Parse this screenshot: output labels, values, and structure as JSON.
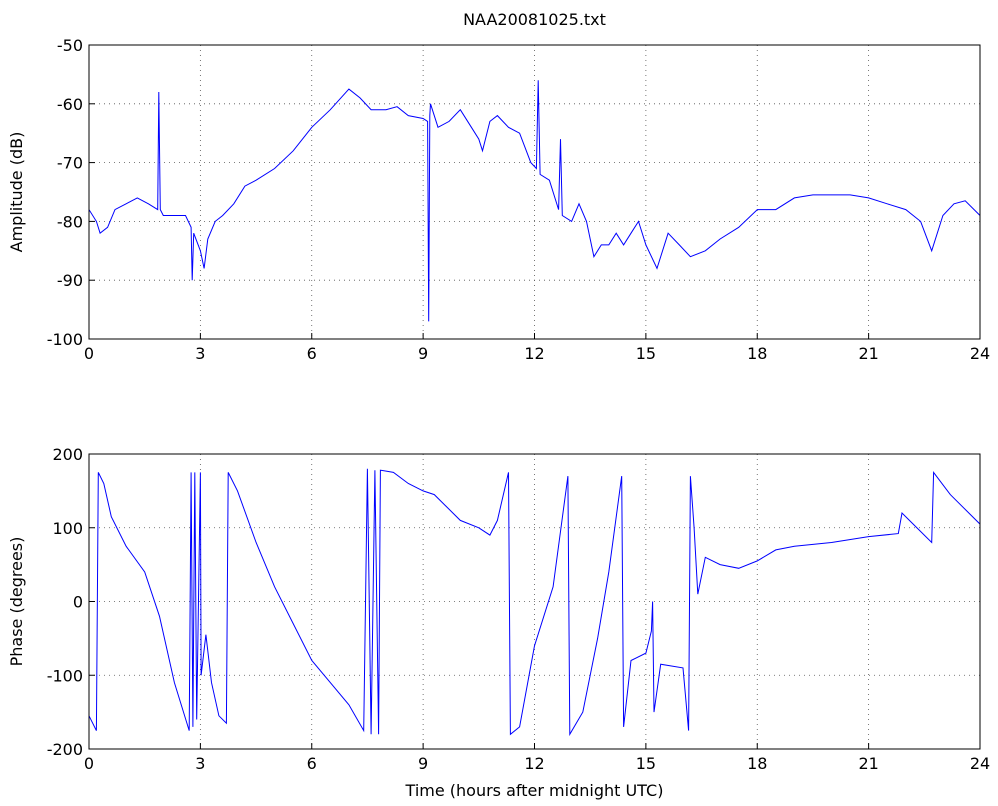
{
  "chart_data": [
    {
      "type": "line",
      "title": "NAA20081025.txt",
      "y_label": "Amplitude (dB)",
      "grid": true,
      "xlim": [
        0,
        24
      ],
      "xticks": [
        0,
        3,
        6,
        9,
        12,
        15,
        18,
        21,
        24
      ],
      "ylim": [
        -100,
        -50
      ],
      "yticks": [
        -100,
        -90,
        -80,
        -70,
        -60,
        -50
      ],
      "x": [
        0,
        0.2,
        0.3,
        0.5,
        0.7,
        1,
        1.3,
        1.6,
        1.85,
        1.88,
        1.92,
        2.0,
        2.3,
        2.6,
        2.75,
        2.78,
        2.82,
        3.0,
        3.1,
        3.2,
        3.4,
        3.6,
        3.9,
        4.2,
        4.5,
        5,
        5.5,
        6,
        6.5,
        7,
        7.3,
        7.6,
        8,
        8.3,
        8.6,
        9.0,
        9.12,
        9.15,
        9.18,
        9.2,
        9.4,
        9.7,
        10,
        10.3,
        10.5,
        10.6,
        10.8,
        11,
        11.3,
        11.6,
        11.9,
        12.05,
        12.1,
        12.15,
        12.4,
        12.65,
        12.7,
        12.75,
        13,
        13.2,
        13.4,
        13.6,
        13.8,
        14,
        14.2,
        14.4,
        14.6,
        14.8,
        15,
        15.3,
        15.6,
        15.9,
        16.2,
        16.6,
        17,
        17.5,
        18,
        18.5,
        19,
        19.5,
        20,
        20.5,
        21,
        21.5,
        22,
        22.4,
        22.7,
        23,
        23.3,
        23.6,
        24
      ],
      "series": [
        {
          "color": "#0000ff",
          "values": [
            -78,
            -80,
            -82,
            -81,
            -78,
            -77,
            -76,
            -77,
            -78,
            -58,
            -78,
            -79,
            -79,
            -79,
            -81,
            -90,
            -82,
            -85,
            -88,
            -83,
            -80,
            -79,
            -77,
            -74,
            -73,
            -71,
            -68,
            -64,
            -61,
            -57.5,
            -59,
            -61,
            -61,
            -60.5,
            -62,
            -62.5,
            -63,
            -97,
            -62,
            -60,
            -64,
            -63,
            -61,
            -64,
            -66,
            -68,
            -63,
            -62,
            -64,
            -65,
            -70,
            -71,
            -56,
            -72,
            -73,
            -78,
            -66,
            -79,
            -80,
            -77,
            -80,
            -86,
            -84,
            -84,
            -82,
            -84,
            -82,
            -80,
            -84,
            -88,
            -82,
            -84,
            -86,
            -85,
            -83,
            -81,
            -78,
            -78,
            -76,
            -75.5,
            -75.5,
            -75.5,
            -76,
            -77,
            -78,
            -80,
            -85,
            -79,
            -77,
            -76.5,
            -79
          ]
        }
      ]
    },
    {
      "type": "line",
      "x_label": "Time (hours after midnight UTC)",
      "y_label": "Phase (degrees)",
      "grid": true,
      "xlim": [
        0,
        24
      ],
      "xticks": [
        0,
        3,
        6,
        9,
        12,
        15,
        18,
        21,
        24
      ],
      "ylim": [
        -200,
        200
      ],
      "yticks": [
        -200,
        -100,
        0,
        100,
        200
      ],
      "x": [
        0,
        0.2,
        0.25,
        0.4,
        0.6,
        1,
        1.5,
        1.9,
        2.3,
        2.7,
        2.75,
        2.8,
        2.85,
        2.9,
        3.0,
        3.02,
        3.15,
        3.3,
        3.5,
        3.7,
        3.75,
        4.0,
        4.5,
        5,
        5.5,
        6,
        6.5,
        7,
        7.4,
        7.5,
        7.6,
        7.7,
        7.8,
        7.85,
        8.2,
        8.6,
        9,
        9.3,
        9.6,
        10,
        10.5,
        10.8,
        11,
        11.3,
        11.35,
        11.6,
        12,
        12.5,
        12.9,
        12.95,
        13.3,
        13.7,
        14,
        14.35,
        14.4,
        14.6,
        15,
        15.15,
        15.18,
        15.22,
        15.4,
        16,
        16.15,
        16.2,
        16.3,
        16.4,
        16.6,
        17,
        17.5,
        18,
        18.5,
        19,
        20,
        21,
        21.8,
        21.9,
        22.2,
        22.7,
        22.75,
        23.2,
        24
      ],
      "series": [
        {
          "color": "#0000ff",
          "values": [
            -155,
            -175,
            175,
            160,
            115,
            75,
            40,
            -20,
            -110,
            -175,
            175,
            -170,
            175,
            -160,
            175,
            -100,
            -45,
            -110,
            -155,
            -165,
            175,
            150,
            80,
            20,
            -30,
            -80,
            -110,
            -140,
            -175,
            180,
            -180,
            178,
            -180,
            178,
            175,
            160,
            150,
            145,
            130,
            110,
            100,
            90,
            110,
            175,
            -180,
            -170,
            -60,
            20,
            170,
            -180,
            -150,
            -50,
            40,
            170,
            -170,
            -80,
            -70,
            -40,
            0,
            -150,
            -85,
            -90,
            -175,
            170,
            100,
            10,
            60,
            50,
            45,
            55,
            70,
            75,
            80,
            88,
            92,
            120,
            105,
            80,
            175,
            145,
            105
          ]
        }
      ]
    }
  ]
}
